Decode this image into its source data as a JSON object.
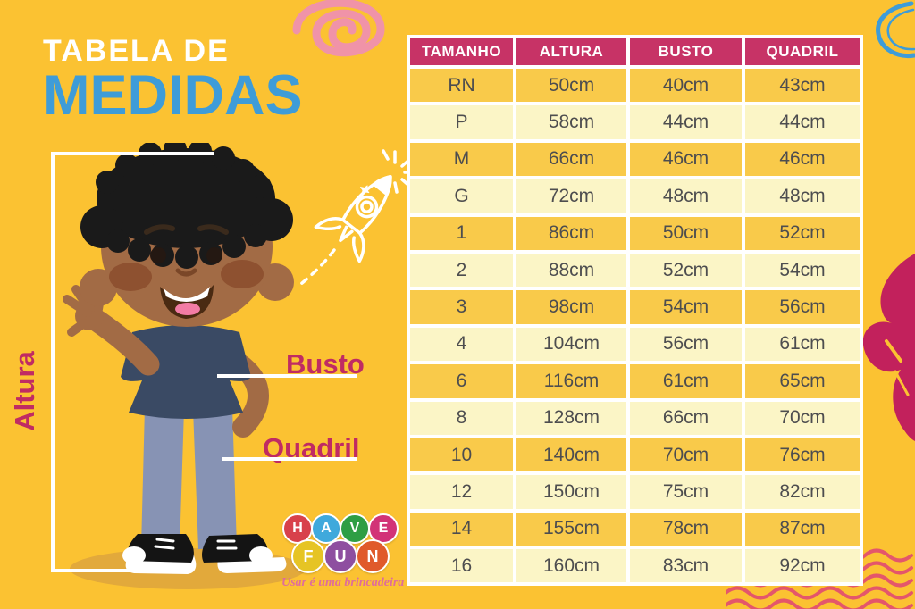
{
  "page": {
    "title_line1": "TABELA DE",
    "title_line2": "MEDIDAS"
  },
  "measure_labels": {
    "altura": "Altura",
    "busto": "Busto",
    "quadril": "Quadril"
  },
  "chart_data": {
    "type": "table",
    "title": "Tabela de Medidas",
    "columns": [
      "TAMANHO",
      "ALTURA",
      "BUSTO",
      "QUADRIL"
    ],
    "rows": [
      [
        "RN",
        "50cm",
        "40cm",
        "43cm"
      ],
      [
        "P",
        "58cm",
        "44cm",
        "44cm"
      ],
      [
        "M",
        "66cm",
        "46cm",
        "46cm"
      ],
      [
        "G",
        "72cm",
        "48cm",
        "48cm"
      ],
      [
        "1",
        "86cm",
        "50cm",
        "52cm"
      ],
      [
        "2",
        "88cm",
        "52cm",
        "54cm"
      ],
      [
        "3",
        "98cm",
        "54cm",
        "56cm"
      ],
      [
        "4",
        "104cm",
        "56cm",
        "61cm"
      ],
      [
        "6",
        "116cm",
        "61cm",
        "65cm"
      ],
      [
        "8",
        "128cm",
        "66cm",
        "70cm"
      ],
      [
        "10",
        "140cm",
        "70cm",
        "76cm"
      ],
      [
        "12",
        "150cm",
        "75cm",
        "82cm"
      ],
      [
        "14",
        "155cm",
        "78cm",
        "87cm"
      ],
      [
        "16",
        "160cm",
        "83cm",
        "92cm"
      ]
    ]
  },
  "logo": {
    "letters": [
      {
        "char": "H",
        "color": "#D8414B",
        "row": 1
      },
      {
        "char": "A",
        "color": "#3FA9DC",
        "row": 1
      },
      {
        "char": "V",
        "color": "#2E9E44",
        "row": 1
      },
      {
        "char": "E",
        "color": "#D23377",
        "row": 1
      },
      {
        "char": "F",
        "color": "#E6C424",
        "row": 2
      },
      {
        "char": "U",
        "color": "#8E4FA0",
        "row": 2
      },
      {
        "char": "N",
        "color": "#E05A2B",
        "row": 2
      }
    ],
    "tagline": "Usar é uma brincadeira"
  },
  "colors": {
    "background": "#FBC232",
    "header_bg": "#C73366",
    "row_dark": "#F9CA4A",
    "row_light": "#FBF5C6",
    "cell_text": "#4D4D4F",
    "accent_magenta": "#C02B63",
    "title_blue": "#3E9CD8",
    "wave_pink": "#E4566B",
    "doodle_pink": "#F093A8",
    "heart_magenta": "#C2215C",
    "shadow_yellow": "#E2A93B"
  }
}
